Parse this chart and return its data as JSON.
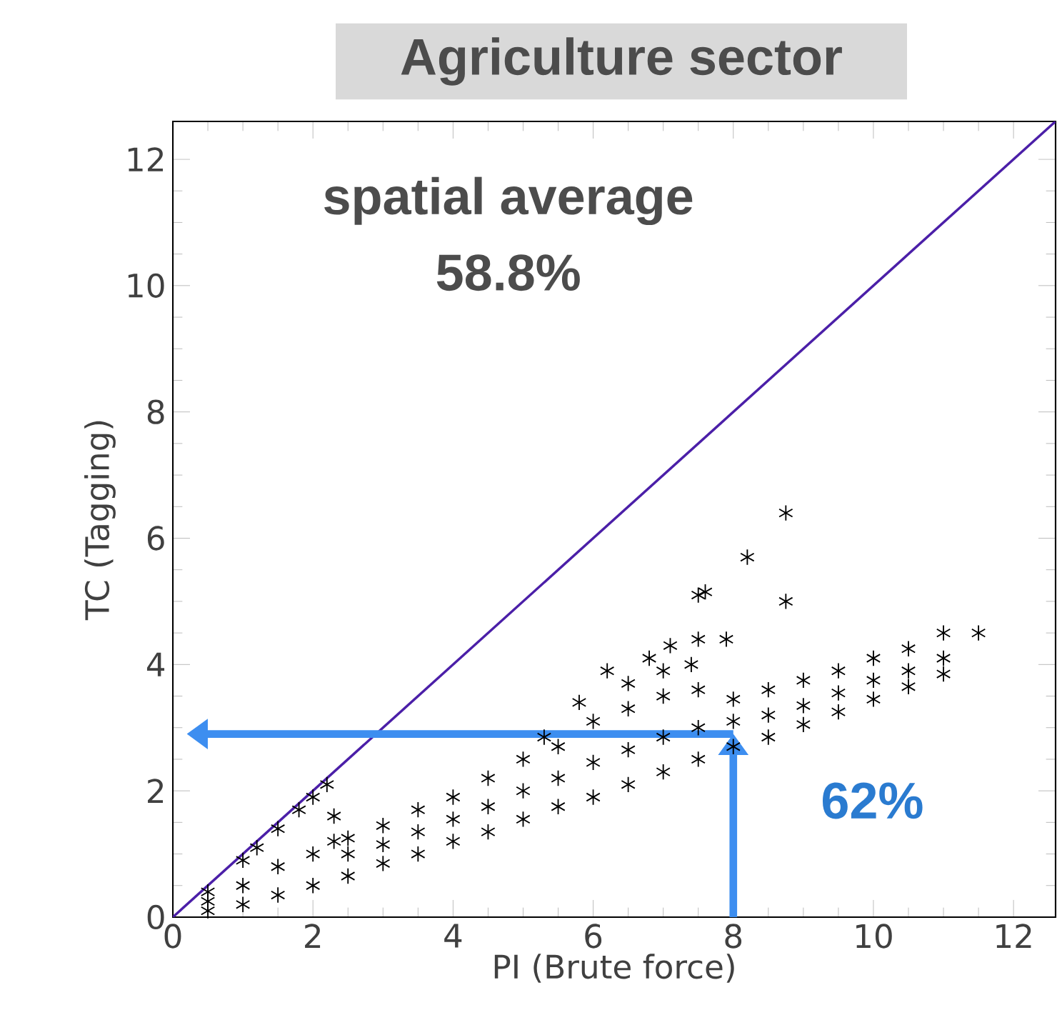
{
  "chart_data": {
    "type": "scatter",
    "title": "Agriculture sector",
    "xlabel": "PI (Brute force)",
    "ylabel": "TC (Tagging)",
    "xlim": [
      0,
      12.6
    ],
    "ylim": [
      0,
      12.6
    ],
    "xticks": [
      0,
      2,
      4,
      6,
      8,
      10,
      12
    ],
    "yticks": [
      0,
      2,
      4,
      6,
      8,
      10,
      12
    ],
    "marker": "cross",
    "annotations": [
      "spatial average",
      "58.8%",
      {
        "text": "62%",
        "x": 8,
        "y": 2.9
      }
    ],
    "series": [
      {
        "type": "scatter",
        "color": "#000000",
        "x": [
          0.5,
          0.5,
          0.5,
          1.0,
          1.0,
          1.0,
          1.5,
          1.5,
          1.5,
          2.0,
          2.0,
          2.0,
          2.5,
          2.5,
          2.5,
          3.0,
          3.0,
          3.0,
          3.5,
          3.5,
          3.5,
          4.0,
          4.0,
          4.0,
          4.5,
          4.5,
          4.5,
          5.0,
          5.0,
          5.0,
          5.5,
          5.5,
          5.5,
          6.0,
          6.0,
          6.0,
          6.5,
          6.5,
          6.5,
          7.0,
          7.0,
          7.0,
          7.5,
          7.5,
          7.5,
          8.0,
          8.0,
          8.0,
          8.5,
          8.5,
          8.5,
          9.0,
          9.0,
          9.0,
          9.5,
          9.5,
          9.5,
          10.0,
          10.0,
          10.0,
          10.5,
          10.5,
          10.5,
          11.0,
          11.0,
          11.0,
          11.5,
          1.8,
          2.2,
          2.3,
          2.3,
          1.2,
          5.3,
          5.8,
          6.2,
          6.5,
          6.8,
          7.1,
          7.5,
          7.9,
          7.4,
          7.0,
          7.5,
          7.6,
          8.2,
          8.75,
          8.75
        ],
        "values": [
          0.1,
          0.25,
          0.4,
          0.2,
          0.5,
          0.9,
          0.35,
          0.8,
          1.4,
          0.5,
          1.0,
          1.9,
          0.65,
          1.0,
          1.25,
          0.85,
          1.15,
          1.45,
          1.0,
          1.35,
          1.7,
          1.2,
          1.55,
          1.9,
          1.35,
          1.75,
          2.2,
          1.55,
          2.0,
          2.5,
          1.75,
          2.2,
          2.7,
          1.9,
          2.45,
          3.1,
          2.1,
          2.65,
          3.3,
          2.3,
          2.85,
          3.5,
          2.5,
          3.0,
          3.6,
          2.7,
          3.1,
          3.45,
          2.85,
          3.2,
          3.6,
          3.05,
          3.35,
          3.75,
          3.25,
          3.55,
          3.9,
          3.45,
          3.75,
          4.1,
          3.65,
          3.9,
          4.25,
          3.85,
          4.1,
          4.5,
          4.5,
          1.7,
          2.1,
          1.6,
          1.2,
          1.1,
          2.85,
          3.4,
          3.9,
          3.7,
          4.1,
          4.3,
          4.4,
          4.4,
          4.0,
          3.9,
          5.1,
          5.15,
          5.7,
          6.4,
          5.0
        ]
      },
      {
        "type": "line",
        "color": "#4b1fa8",
        "marker": "none",
        "x": [
          0,
          12.6
        ],
        "values": [
          0,
          12.6
        ]
      }
    ]
  }
}
